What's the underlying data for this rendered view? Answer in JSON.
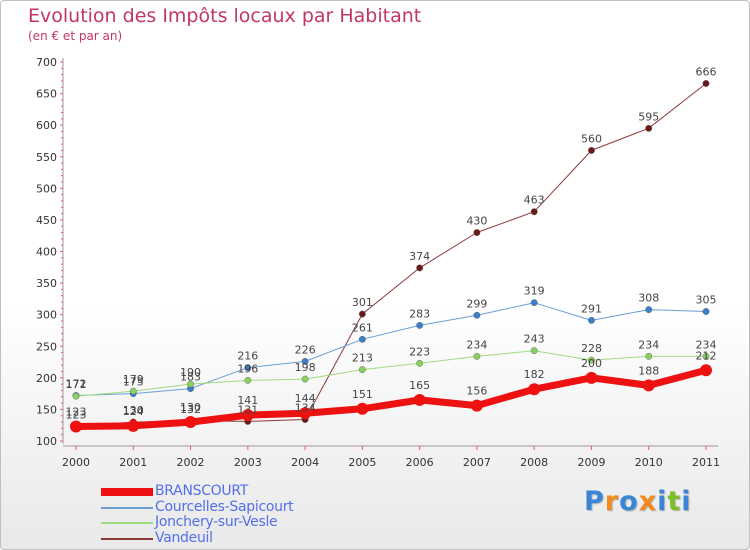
{
  "title": "Evolution des Impôts locaux par Habitant",
  "subtitle": "(en € et par an)",
  "logo": {
    "letters": [
      "P",
      "r",
      "o",
      "x",
      "i",
      "t",
      "i"
    ],
    "colors": [
      "#3a86d6",
      "#f28a1e",
      "#3a86d6",
      "#f28a1e",
      "#3a86d6",
      "#7cbf2a",
      "#3a86d6"
    ]
  },
  "chart_data": {
    "type": "line",
    "title": "Evolution des Impôts locaux par Habitant",
    "subtitle": "(en € et par an)",
    "x": [
      "2000",
      "2001",
      "2002",
      "2003",
      "2004",
      "2005",
      "2006",
      "2007",
      "2008",
      "2009",
      "2010",
      "2011"
    ],
    "ylim": [
      100,
      700
    ],
    "yticks": [
      100,
      150,
      200,
      250,
      300,
      350,
      400,
      450,
      500,
      550,
      600,
      650,
      700
    ],
    "grid": false,
    "legend": "bottom-left",
    "series": [
      {
        "name": "Vandeuil",
        "color": "#8b3a3a",
        "marker": "#6a1a1a",
        "width": 1,
        "values": [
          123,
          130,
          132,
          131,
          134,
          301,
          374,
          430,
          463,
          560,
          595,
          666
        ]
      },
      {
        "name": "Courcelles-Sapicourt",
        "color": "#6b9fd4",
        "marker": "#3a7fcc",
        "width": 1,
        "values": [
          172,
          175,
          183,
          216,
          226,
          261,
          283,
          299,
          319,
          291,
          308,
          305
        ]
      },
      {
        "name": "Jonchery-sur-Vesle",
        "color": "#a0dc80",
        "marker": "#8ad060",
        "width": 1,
        "values": [
          171,
          179,
          190,
          196,
          198,
          213,
          223,
          234,
          243,
          228,
          234,
          234
        ]
      },
      {
        "name": "BRANSCOURT",
        "color": "#ee1111",
        "marker": "#ee1111",
        "width": 7,
        "values": [
          123,
          124,
          130,
          141,
          144,
          151,
          165,
          156,
          182,
          200,
          188,
          212
        ]
      }
    ],
    "legend_order": [
      "BRANSCOURT",
      "Courcelles-Sapicourt",
      "Jonchery-sur-Vesle",
      "Vandeuil"
    ]
  }
}
